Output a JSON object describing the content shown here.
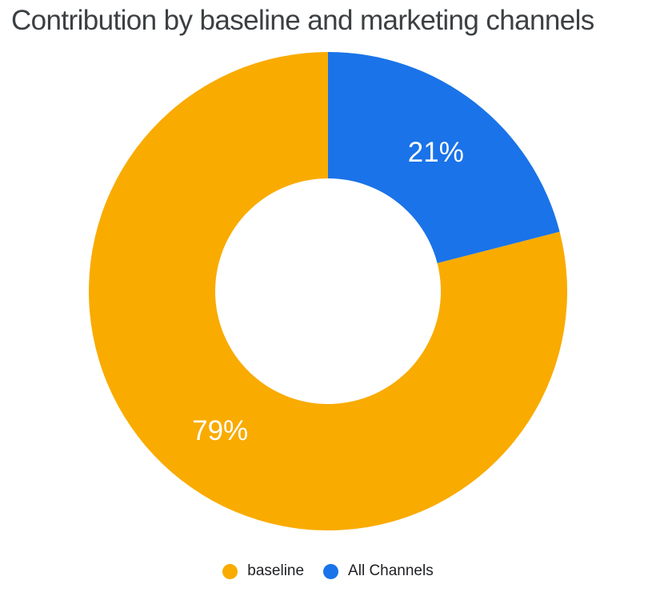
{
  "title": "Contribution by baseline and marketing channels",
  "chart_data": {
    "type": "pie",
    "donut": true,
    "title": "Contribution by baseline and marketing channels",
    "slices": [
      {
        "label": "baseline",
        "value": 79,
        "display": "79%",
        "color": "#F9AB00"
      },
      {
        "label": "All Channels",
        "value": 21,
        "display": "21%",
        "color": "#1A73E8"
      }
    ],
    "slice_label_color": "#FFFFFF",
    "legend_position": "bottom",
    "start_position": "12-oclock",
    "background": "#FFFFFF",
    "title_color": "#3C4043"
  }
}
